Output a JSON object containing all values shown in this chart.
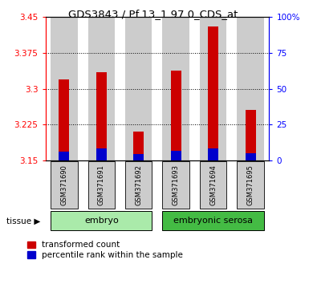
{
  "title": "GDS3843 / Pf.13_1.97.0_CDS_at",
  "samples": [
    "GSM371690",
    "GSM371691",
    "GSM371692",
    "GSM371693",
    "GSM371694",
    "GSM371695"
  ],
  "red_values": [
    3.32,
    3.335,
    3.21,
    3.338,
    3.43,
    3.255
  ],
  "blue_values": [
    3.168,
    3.175,
    3.163,
    3.17,
    3.175,
    3.165
  ],
  "y_min": 3.15,
  "y_max": 3.45,
  "y_ticks_left": [
    3.15,
    3.225,
    3.3,
    3.375,
    3.45
  ],
  "y_ticks_right": [
    0,
    25,
    50,
    75,
    100
  ],
  "groups": [
    {
      "label": "embryo",
      "indices": [
        0,
        1,
        2
      ],
      "color": "#aaeaaa"
    },
    {
      "label": "embryonic serosa",
      "indices": [
        3,
        4,
        5
      ],
      "color": "#44bb44"
    }
  ],
  "bar_width": 0.72,
  "thin_bar_width": 0.28,
  "red_color": "#cc0000",
  "blue_color": "#0000cc",
  "tissue_label": "tissue ▶",
  "legend": [
    "transformed count",
    "percentile rank within the sample"
  ],
  "bar_bg_color": "#cccccc",
  "plot_bg": "#ffffff"
}
